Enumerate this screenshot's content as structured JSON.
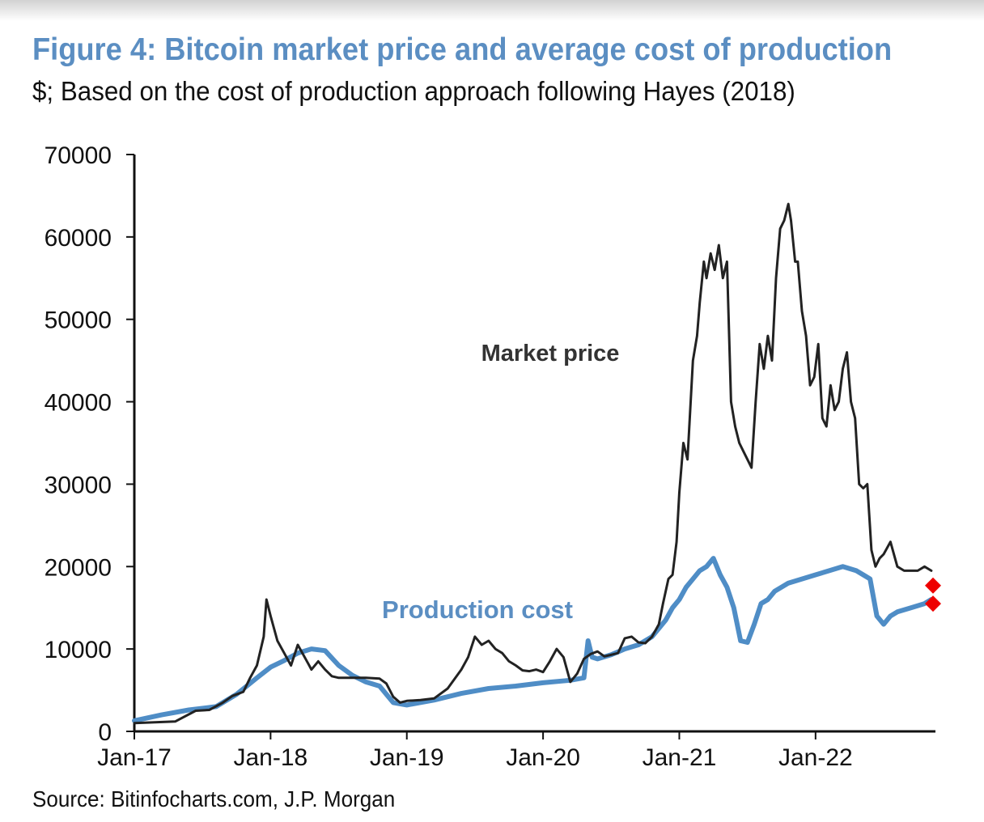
{
  "title": "Figure 4: Bitcoin market price and average cost of production",
  "subtitle": "$; Based on the cost of production approach following Hayes (2018)",
  "source": "Source: Bitinfocharts.com, J.P. Morgan",
  "colors": {
    "title": "#5b8ec2",
    "market_price": "#222222",
    "production_cost": "#4f8dc6",
    "marker": "#ee0000"
  },
  "chart_data": {
    "type": "line",
    "title": "",
    "xlabel": "",
    "ylabel": "",
    "ylim": [
      0,
      70000
    ],
    "yticks": [
      0,
      10000,
      20000,
      30000,
      40000,
      50000,
      60000,
      70000
    ],
    "xlim": [
      2017.0,
      2022.88
    ],
    "xticks": [
      {
        "value": 2017,
        "label": "Jan-17"
      },
      {
        "value": 2018,
        "label": "Jan-18"
      },
      {
        "value": 2019,
        "label": "Jan-19"
      },
      {
        "value": 2020,
        "label": "Jan-20"
      },
      {
        "value": 2021,
        "label": "Jan-21"
      },
      {
        "value": 2022,
        "label": "Jan-22"
      }
    ],
    "grid": false,
    "legend": "none",
    "series": [
      {
        "name": "Market price",
        "x": [
          2017.0,
          2017.15,
          2017.3,
          2017.45,
          2017.55,
          2017.65,
          2017.72,
          2017.8,
          2017.85,
          2017.9,
          2017.95,
          2017.97,
          2018.0,
          2018.05,
          2018.1,
          2018.15,
          2018.2,
          2018.25,
          2018.3,
          2018.35,
          2018.4,
          2018.45,
          2018.5,
          2018.6,
          2018.7,
          2018.8,
          2018.85,
          2018.9,
          2018.95,
          2019.0,
          2019.1,
          2019.2,
          2019.3,
          2019.4,
          2019.45,
          2019.5,
          2019.55,
          2019.6,
          2019.65,
          2019.7,
          2019.75,
          2019.8,
          2019.85,
          2019.9,
          2019.95,
          2020.0,
          2020.05,
          2020.1,
          2020.15,
          2020.2,
          2020.25,
          2020.3,
          2020.35,
          2020.4,
          2020.45,
          2020.5,
          2020.55,
          2020.6,
          2020.65,
          2020.7,
          2020.75,
          2020.8,
          2020.85,
          2020.88,
          2020.92,
          2020.95,
          2020.98,
          2021.0,
          2021.03,
          2021.06,
          2021.1,
          2021.13,
          2021.15,
          2021.18,
          2021.2,
          2021.23,
          2021.26,
          2021.29,
          2021.32,
          2021.35,
          2021.38,
          2021.41,
          2021.44,
          2021.47,
          2021.5,
          2021.53,
          2021.56,
          2021.59,
          2021.62,
          2021.65,
          2021.68,
          2021.71,
          2021.74,
          2021.77,
          2021.8,
          2021.82,
          2021.85,
          2021.87,
          2021.9,
          2021.93,
          2021.96,
          2021.99,
          2022.02,
          2022.05,
          2022.08,
          2022.11,
          2022.14,
          2022.17,
          2022.2,
          2022.23,
          2022.26,
          2022.29,
          2022.32,
          2022.35,
          2022.38,
          2022.41,
          2022.44,
          2022.47,
          2022.5,
          2022.55,
          2022.6,
          2022.65,
          2022.7,
          2022.75,
          2022.8,
          2022.85
        ],
        "values": [
          1000,
          1100,
          1200,
          2500,
          2600,
          3500,
          4300,
          4800,
          6500,
          8000,
          11500,
          16000,
          14000,
          11000,
          9500,
          8000,
          10500,
          9000,
          7500,
          8500,
          7500,
          6700,
          6500,
          6500,
          6500,
          6400,
          5800,
          4200,
          3500,
          3700,
          3800,
          4000,
          5200,
          7500,
          9000,
          11500,
          10500,
          11000,
          10000,
          9500,
          8500,
          8000,
          7400,
          7300,
          7500,
          7200,
          8500,
          10000,
          9000,
          6000,
          7000,
          8800,
          9400,
          9700,
          9100,
          9300,
          9500,
          11300,
          11500,
          10800,
          10700,
          11500,
          13000,
          15500,
          18500,
          19000,
          23000,
          29000,
          35000,
          33000,
          45000,
          48000,
          52000,
          57000,
          55000,
          58000,
          56000,
          59000,
          55000,
          57000,
          40000,
          37000,
          35000,
          34000,
          33000,
          32000,
          40000,
          47000,
          44000,
          48000,
          45000,
          55000,
          61000,
          62000,
          64000,
          62000,
          57000,
          57000,
          51000,
          48000,
          42000,
          43000,
          47000,
          38000,
          37000,
          42000,
          39000,
          40000,
          44000,
          46000,
          40000,
          38000,
          30000,
          29500,
          30000,
          22000,
          20000,
          21000,
          21500,
          23000,
          20000,
          19500,
          19500,
          19500,
          20000,
          19500
        ]
      },
      {
        "name": "Production cost",
        "x": [
          2017.0,
          2017.2,
          2017.4,
          2017.6,
          2017.75,
          2017.9,
          2018.0,
          2018.1,
          2018.2,
          2018.3,
          2018.4,
          2018.5,
          2018.6,
          2018.7,
          2018.8,
          2018.85,
          2018.9,
          2019.0,
          2019.2,
          2019.4,
          2019.6,
          2019.8,
          2020.0,
          2020.2,
          2020.3,
          2020.33,
          2020.36,
          2020.4,
          2020.5,
          2020.6,
          2020.7,
          2020.8,
          2020.85,
          2020.9,
          2020.95,
          2021.0,
          2021.05,
          2021.1,
          2021.15,
          2021.2,
          2021.25,
          2021.3,
          2021.35,
          2021.4,
          2021.45,
          2021.5,
          2021.55,
          2021.6,
          2021.65,
          2021.7,
          2021.8,
          2021.9,
          2022.0,
          2022.1,
          2022.2,
          2022.3,
          2022.35,
          2022.4,
          2022.45,
          2022.5,
          2022.55,
          2022.6,
          2022.7,
          2022.8,
          2022.85
        ],
        "values": [
          1300,
          2000,
          2600,
          3000,
          4500,
          6500,
          7800,
          8600,
          9500,
          10000,
          9800,
          8000,
          6800,
          6000,
          5500,
          4500,
          3500,
          3200,
          3800,
          4600,
          5200,
          5500,
          5900,
          6200,
          6500,
          11000,
          9000,
          8800,
          9300,
          10000,
          10500,
          11500,
          12500,
          13500,
          15000,
          16000,
          17500,
          18500,
          19500,
          20000,
          21000,
          19000,
          17500,
          15000,
          11000,
          10800,
          13000,
          15500,
          16000,
          17000,
          18000,
          18500,
          19000,
          19500,
          20000,
          19500,
          19000,
          18500,
          14000,
          13000,
          14000,
          14500,
          15000,
          15500,
          16000
        ]
      },
      {
        "name": "",
        "type": "scatter",
        "x": [
          2022.88,
          2022.88
        ],
        "values": [
          17700,
          15500
        ]
      }
    ],
    "annotations": [
      "Market price",
      "Production cost"
    ]
  }
}
